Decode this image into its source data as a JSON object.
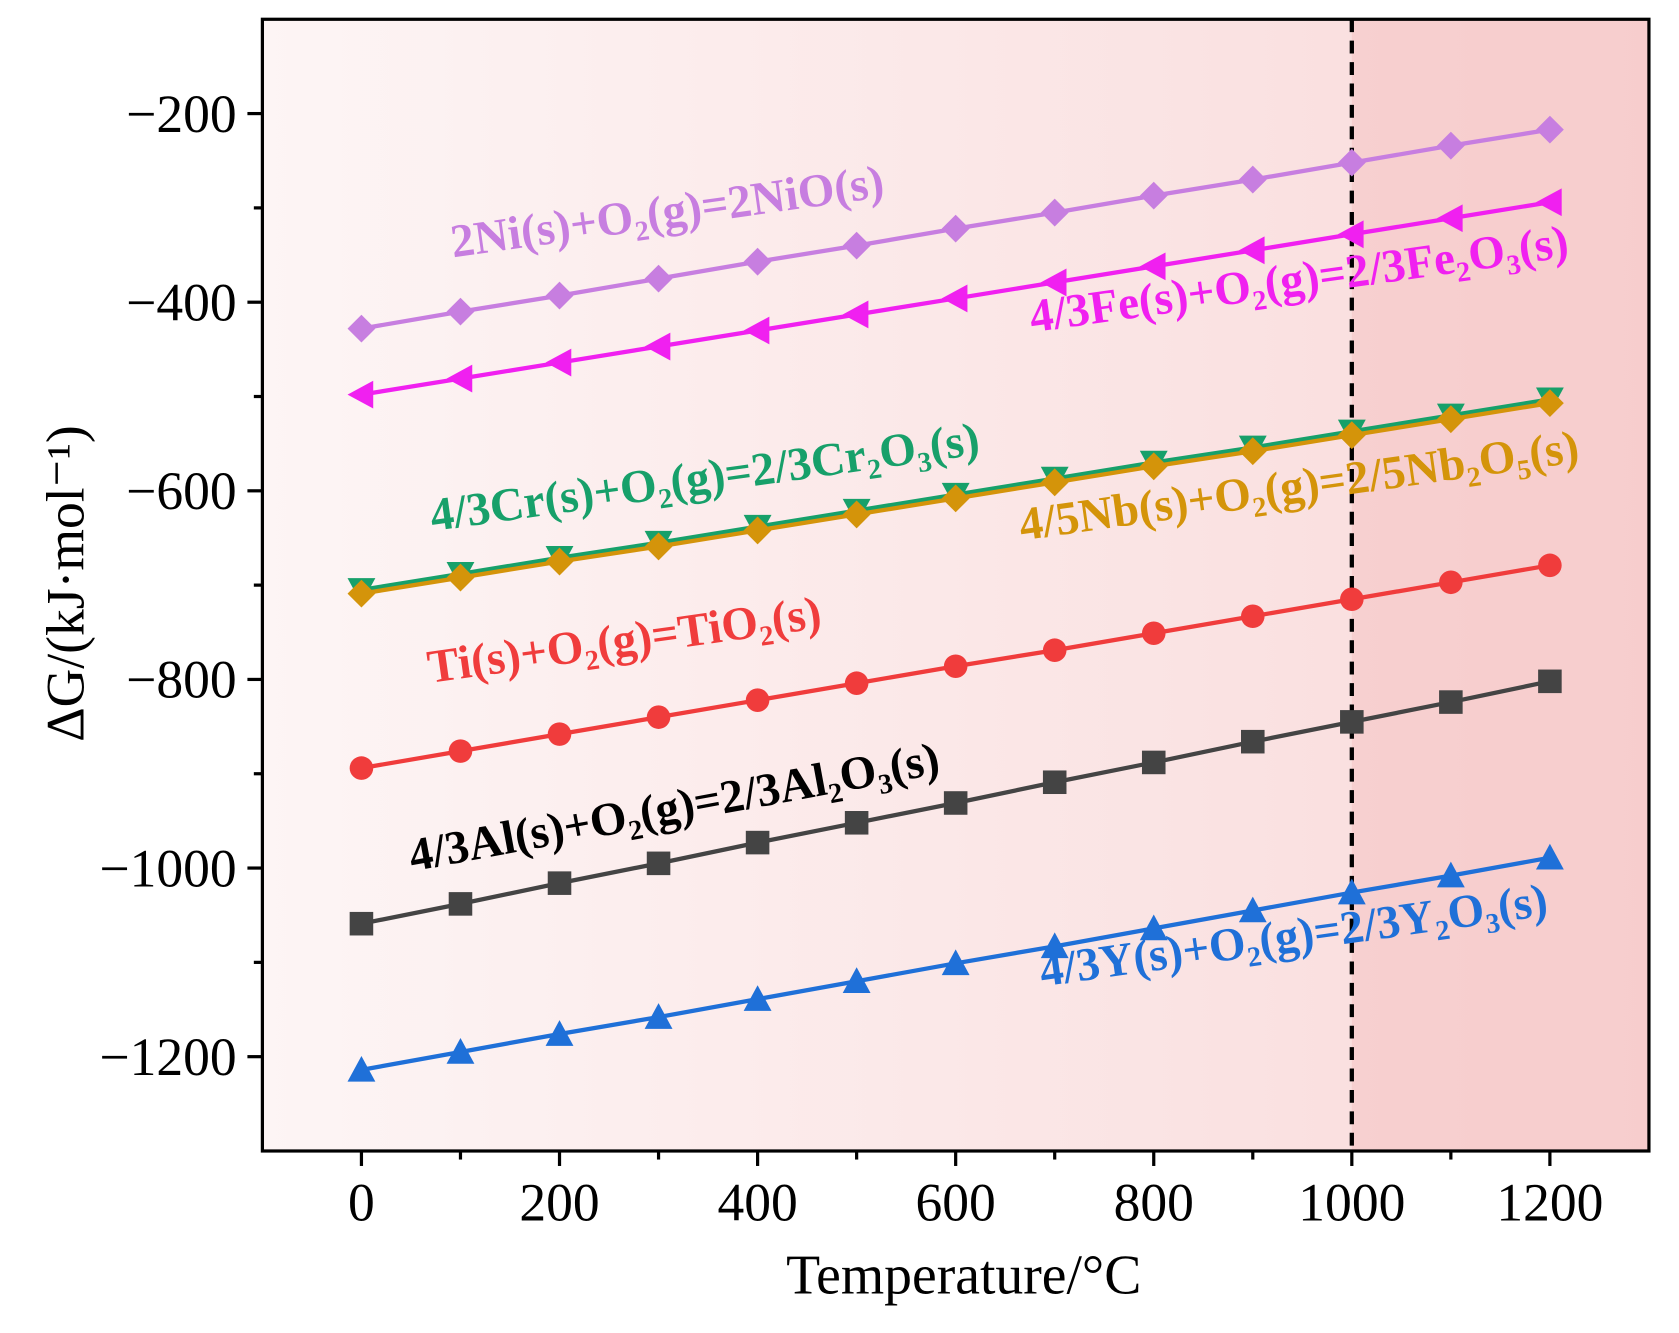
{
  "chart_data": {
    "type": "line",
    "x_label": "Temperature/°C",
    "y_label": "ΔG/(kJ·mol⁻¹)",
    "xlim": [
      -100,
      1300
    ],
    "ylim": [
      -1300,
      -100
    ],
    "xticks": [
      0,
      200,
      400,
      600,
      800,
      1000,
      1200
    ],
    "xminorticks": [
      100,
      300,
      500,
      700,
      900,
      1100
    ],
    "yticks": [
      {
        "value": -200,
        "label": "−200"
      },
      {
        "value": -400,
        "label": "−400"
      },
      {
        "value": -600,
        "label": "−600"
      },
      {
        "value": -800,
        "label": "−800"
      },
      {
        "value": -1000,
        "label": "−1000"
      },
      {
        "value": -1200,
        "label": "−1200"
      }
    ],
    "yminorticks": [
      -300,
      -500,
      -700,
      -900,
      -1100
    ],
    "vline": 1000,
    "x": [
      0,
      100,
      200,
      300,
      400,
      500,
      600,
      700,
      800,
      900,
      1000,
      1100,
      1200
    ],
    "series": [
      {
        "name": "2Ni(s)+O₂(g)=2NiO(s)",
        "color": "#c77ee0",
        "marker": "diamond",
        "values": [
          -428,
          -410,
          -393,
          -375,
          -357,
          -340,
          -322,
          -305,
          -287,
          -270,
          -252,
          -234,
          -217
        ]
      },
      {
        "name": "4/3Fe(s)+O₂(g)=2/3Fe₂O₃(s)",
        "color": "#f020f0",
        "marker": "triangle-left",
        "values": [
          -498,
          -481,
          -464,
          -447,
          -430,
          -413,
          -396,
          -379,
          -362,
          -345,
          -328,
          -311,
          -294
        ]
      },
      {
        "name": "4/3Cr(s)+O₂(g)=2/3Cr₂O₃(s)",
        "color": "#17a06a",
        "marker": "triangle-down",
        "values": [
          -705,
          -688,
          -671,
          -655,
          -638,
          -621,
          -604,
          -587,
          -570,
          -554,
          -537,
          -520,
          -503
        ]
      },
      {
        "name": "4/5Nb(s)+O₂(g)=2/5Nb₂O₅(s)",
        "color": "#d4940a",
        "marker": "diamond",
        "values": [
          -709,
          -692,
          -675,
          -659,
          -642,
          -625,
          -608,
          -591,
          -574,
          -558,
          -541,
          -524,
          -507
        ]
      },
      {
        "name": "Ti(s)+O₂(g)=TiO₂(s)",
        "color": "#f03c3c",
        "marker": "circle",
        "values": [
          -894,
          -876,
          -858,
          -840,
          -822,
          -804,
          -786,
          -769,
          -751,
          -733,
          -715,
          -697,
          -679
        ]
      },
      {
        "name": "4/3Al(s)+O₂(g)=2/3Al₂O₃(s)",
        "color": "#444444",
        "marker": "square",
        "values": [
          -1059,
          -1038,
          -1016,
          -995,
          -973,
          -952,
          -931,
          -909,
          -888,
          -866,
          -845,
          -824,
          -802
        ]
      },
      {
        "name": "4/3Y(s)+O₂(g)=2/3Y₂O₃(s)",
        "color": "#1f70d8",
        "marker": "triangle-up",
        "values": [
          -1214,
          -1195,
          -1176,
          -1158,
          -1139,
          -1120,
          -1101,
          -1083,
          -1064,
          -1045,
          -1026,
          -1008,
          -989
        ]
      }
    ]
  }
}
